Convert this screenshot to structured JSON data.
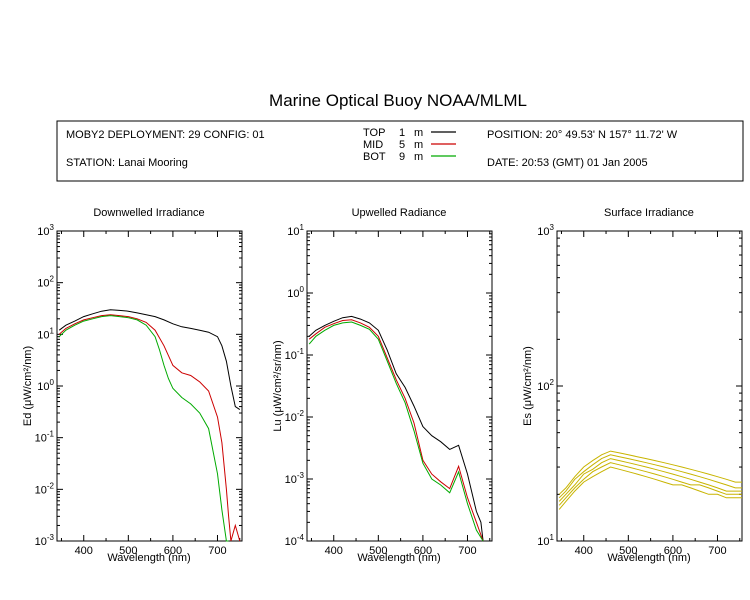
{
  "title": "Marine Optical Buoy NOAA/MLML",
  "info": {
    "deployment": "MOBY2 DEPLOYMENT: 29 CONFIG: 01",
    "station": "STATION: Lanai Mooring",
    "position": "POSITION: 20° 49.53' N   157° 11.72' W",
    "date": "DATE: 20:53 (GMT) 01 Jan 2005",
    "legend": [
      {
        "label": "TOP",
        "depth": "1",
        "unit": "m",
        "color": "#000000"
      },
      {
        "label": "MID",
        "depth": "5",
        "unit": "m",
        "color": "#cc0000"
      },
      {
        "label": "BOT",
        "depth": "9",
        "unit": "m",
        "color": "#00aa00"
      }
    ]
  },
  "colors": {
    "top": "#000000",
    "mid": "#cc0000",
    "bot": "#00aa00",
    "surface": "#c8b400"
  },
  "chart_data": [
    {
      "type": "line",
      "title": "Downwelled Irradiance",
      "xlabel": "Wavelength (nm)",
      "ylabel": "Ed  (μW/cm²/nm)",
      "yscale": "log",
      "xlim": [
        340,
        755
      ],
      "ylim": [
        0.001,
        1000
      ],
      "xticks": [
        400,
        500,
        600,
        700
      ],
      "yticks": [
        {
          "value": 0.001,
          "base": "10",
          "exp": "-3"
        },
        {
          "value": 0.01,
          "base": "10",
          "exp": "-2"
        },
        {
          "value": 0.1,
          "base": "10",
          "exp": "-1"
        },
        {
          "value": 1,
          "base": "10",
          "exp": "0"
        },
        {
          "value": 10,
          "base": "10",
          "exp": "1"
        },
        {
          "value": 100,
          "base": "10",
          "exp": "2"
        },
        {
          "value": 1000,
          "base": "10",
          "exp": "3"
        }
      ],
      "series": [
        {
          "key": "top",
          "x": [
            345,
            360,
            380,
            400,
            420,
            440,
            460,
            480,
            500,
            520,
            540,
            560,
            580,
            600,
            620,
            640,
            660,
            680,
            700,
            710,
            720,
            730,
            740,
            750
          ],
          "y": [
            12,
            15,
            18,
            22,
            25,
            28,
            30,
            29,
            28,
            26,
            24,
            22,
            19,
            16,
            14,
            13,
            12,
            11,
            9,
            6,
            3,
            1,
            0.4,
            0.35
          ]
        },
        {
          "key": "mid",
          "x": [
            345,
            360,
            380,
            400,
            420,
            440,
            460,
            480,
            500,
            520,
            540,
            560,
            580,
            600,
            620,
            640,
            660,
            680,
            700,
            710,
            720,
            725,
            730,
            740,
            750
          ],
          "y": [
            10,
            13,
            16,
            19,
            21,
            23,
            24,
            23,
            22,
            20,
            17,
            12,
            6,
            2.5,
            1.8,
            1.6,
            1.2,
            0.8,
            0.25,
            0.08,
            0.01,
            0.003,
            0.001,
            0.002,
            0.001
          ]
        },
        {
          "key": "bot",
          "x": [
            345,
            360,
            380,
            400,
            420,
            440,
            460,
            480,
            500,
            520,
            540,
            560,
            570,
            580,
            590,
            600,
            620,
            640,
            660,
            680,
            700,
            710,
            720,
            725
          ],
          "y": [
            9,
            12,
            15,
            18,
            20,
            22,
            23,
            22,
            21,
            19,
            15,
            9,
            5,
            2.5,
            1.4,
            0.9,
            0.6,
            0.45,
            0.3,
            0.15,
            0.02,
            0.004,
            0.001,
            0.001
          ]
        }
      ]
    },
    {
      "type": "line",
      "title": "Upwelled Radiance",
      "xlabel": "Wavelength (nm)",
      "ylabel": "Lu  (μW/cm²/sr/nm)",
      "yscale": "log",
      "xlim": [
        340,
        755
      ],
      "ylim": [
        0.0001,
        10
      ],
      "xticks": [
        400,
        500,
        600,
        700
      ],
      "yticks": [
        {
          "value": 0.0001,
          "base": "10",
          "exp": "-4"
        },
        {
          "value": 0.001,
          "base": "10",
          "exp": "-3"
        },
        {
          "value": 0.01,
          "base": "10",
          "exp": "-2"
        },
        {
          "value": 0.1,
          "base": "10",
          "exp": "-1"
        },
        {
          "value": 1,
          "base": "10",
          "exp": "0"
        },
        {
          "value": 10,
          "base": "10",
          "exp": "1"
        }
      ],
      "series": [
        {
          "key": "top",
          "x": [
            345,
            360,
            380,
            400,
            420,
            440,
            460,
            480,
            500,
            520,
            540,
            560,
            580,
            600,
            620,
            640,
            660,
            680,
            700,
            720,
            730,
            735
          ],
          "y": [
            0.2,
            0.25,
            0.3,
            0.35,
            0.4,
            0.42,
            0.38,
            0.33,
            0.25,
            0.12,
            0.05,
            0.03,
            0.015,
            0.007,
            0.005,
            0.004,
            0.003,
            0.0035,
            0.0012,
            0.0003,
            0.0002,
            0.0001
          ]
        },
        {
          "key": "mid",
          "x": [
            345,
            360,
            380,
            400,
            420,
            440,
            460,
            480,
            500,
            520,
            540,
            560,
            580,
            600,
            620,
            640,
            660,
            680,
            700,
            720,
            735
          ],
          "y": [
            0.18,
            0.22,
            0.28,
            0.32,
            0.36,
            0.37,
            0.33,
            0.28,
            0.2,
            0.09,
            0.04,
            0.02,
            0.008,
            0.002,
            0.0012,
            0.0009,
            0.0007,
            0.0016,
            0.0005,
            0.0002,
            0.0001
          ]
        },
        {
          "key": "bot",
          "x": [
            345,
            360,
            380,
            400,
            420,
            440,
            460,
            480,
            500,
            520,
            540,
            560,
            580,
            600,
            620,
            640,
            660,
            680,
            700,
            720,
            735
          ],
          "y": [
            0.15,
            0.2,
            0.25,
            0.3,
            0.33,
            0.34,
            0.3,
            0.26,
            0.18,
            0.08,
            0.035,
            0.017,
            0.006,
            0.0018,
            0.001,
            0.0008,
            0.0006,
            0.0013,
            0.0004,
            0.00015,
            0.0001
          ]
        }
      ]
    },
    {
      "type": "line",
      "title": "Surface Irradiance",
      "xlabel": "Wavelength (nm)",
      "ylabel": "Es  (μW/cm²/nm)",
      "yscale": "log",
      "xlim": [
        340,
        755
      ],
      "ylim": [
        10,
        1000
      ],
      "xticks": [
        400,
        500,
        600,
        700
      ],
      "yticks": [
        {
          "value": 10,
          "base": "10",
          "exp": "1"
        },
        {
          "value": 100,
          "base": "10",
          "exp": "2"
        },
        {
          "value": 1000,
          "base": "10",
          "exp": "3"
        }
      ],
      "series": [
        {
          "key": "surface",
          "x": [
            345,
            360,
            380,
            400,
            420,
            440,
            460,
            480,
            500,
            520,
            540,
            560,
            580,
            600,
            620,
            640,
            660,
            680,
            700,
            720,
            740,
            755
          ],
          "y": [
            20,
            22,
            26,
            30,
            33,
            36,
            38,
            37,
            36,
            35,
            34,
            33,
            32,
            31,
            30,
            29,
            28,
            27,
            26,
            25,
            24,
            24
          ]
        },
        {
          "key": "surface",
          "x": [
            345,
            360,
            380,
            400,
            420,
            440,
            460,
            480,
            500,
            520,
            540,
            560,
            580,
            600,
            620,
            640,
            660,
            680,
            700,
            720,
            740,
            755
          ],
          "y": [
            19,
            21,
            25,
            28,
            31,
            34,
            36,
            35,
            34,
            33,
            32,
            31,
            30,
            29,
            28,
            27,
            26,
            25,
            24,
            23,
            22,
            22
          ]
        },
        {
          "key": "surface",
          "x": [
            345,
            360,
            380,
            400,
            420,
            440,
            460,
            480,
            500,
            520,
            540,
            560,
            580,
            600,
            620,
            640,
            660,
            680,
            700,
            720,
            740,
            755
          ],
          "y": [
            18,
            20,
            23,
            27,
            29,
            32,
            34,
            33,
            32,
            31,
            30,
            29,
            28,
            27,
            26,
            25,
            24,
            23,
            22,
            21,
            21,
            21
          ]
        },
        {
          "key": "surface",
          "x": [
            345,
            360,
            380,
            400,
            420,
            440,
            460,
            480,
            500,
            520,
            540,
            560,
            580,
            600,
            620,
            640,
            660,
            680,
            700,
            720,
            740,
            755
          ],
          "y": [
            17,
            19,
            22,
            25,
            28,
            30,
            32,
            31,
            30,
            29,
            28,
            27,
            26,
            25,
            24,
            23,
            23,
            22,
            21,
            20,
            20,
            20
          ]
        },
        {
          "key": "surface",
          "x": [
            345,
            360,
            380,
            400,
            420,
            440,
            460,
            480,
            500,
            520,
            540,
            560,
            580,
            600,
            620,
            640,
            660,
            680,
            700,
            720,
            740,
            755
          ],
          "y": [
            16,
            18,
            21,
            24,
            26,
            28,
            30,
            29,
            28,
            27,
            26,
            25,
            24,
            23,
            23,
            22,
            21,
            20,
            20,
            19,
            19,
            19
          ]
        }
      ]
    }
  ]
}
